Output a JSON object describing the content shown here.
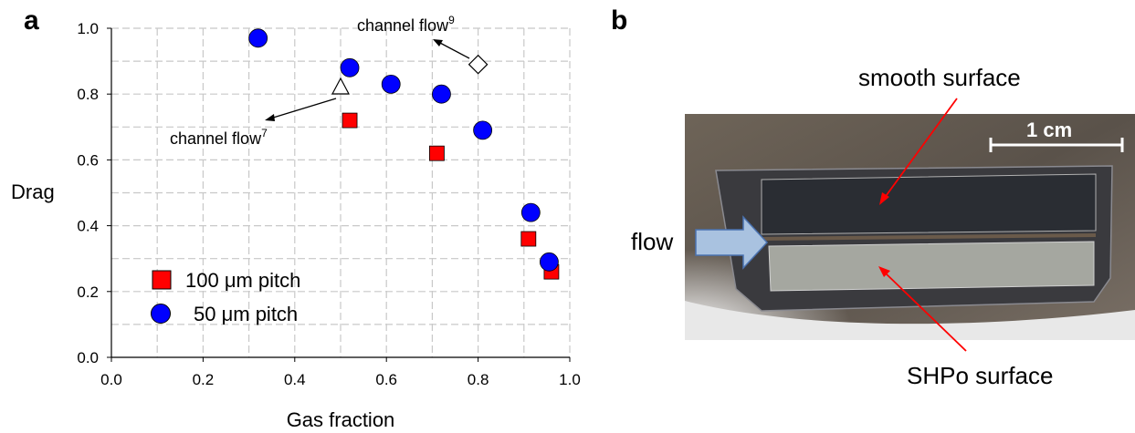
{
  "panel_a": {
    "letter": "a",
    "legend": {
      "series1": "100 μm pitch",
      "series2": "50 μm pitch"
    },
    "annotations": {
      "channel7_text": "channel flow",
      "channel7_ref": "7",
      "channel9_text": "channel flow",
      "channel9_ref": "9"
    }
  },
  "panel_b": {
    "letter": "b",
    "labels": {
      "smooth": "smooth surface",
      "shpo": "SHPo surface",
      "flow": "flow",
      "scale": "1 cm"
    }
  },
  "colors": {
    "series1": "#ff0000",
    "series2": "#0000ff",
    "grid": "#c8c8c8",
    "arrow": "#ff0000",
    "flow_arrow": "#a9c2e0"
  },
  "chart_data": {
    "type": "scatter",
    "xlabel": "Gas fraction",
    "ylabel": "Drag",
    "xlim": [
      0.0,
      1.0
    ],
    "ylim": [
      0.0,
      1.0
    ],
    "xticks": [
      "0.0",
      "0.2",
      "0.4",
      "0.6",
      "0.8",
      "1.0"
    ],
    "yticks": [
      "0.0",
      "0.2",
      "0.4",
      "0.6",
      "0.8",
      "1.0"
    ],
    "grid": true,
    "legend_position": "bottom-left",
    "series": [
      {
        "name": "100 μm pitch",
        "marker": "square",
        "points": [
          [
            0.52,
            0.72
          ],
          [
            0.71,
            0.62
          ],
          [
            0.91,
            0.36
          ],
          [
            0.96,
            0.26
          ]
        ]
      },
      {
        "name": "50 μm pitch",
        "marker": "circle",
        "points": [
          [
            0.32,
            0.97
          ],
          [
            0.52,
            0.88
          ],
          [
            0.61,
            0.83
          ],
          [
            0.72,
            0.8
          ],
          [
            0.81,
            0.69
          ],
          [
            0.915,
            0.44
          ],
          [
            0.955,
            0.29
          ]
        ]
      },
      {
        "marker": "triangle-open",
        "points": [
          [
            0.5,
            0.82
          ]
        ]
      },
      {
        "marker": "diamond-open",
        "points": [
          [
            0.8,
            0.89
          ]
        ]
      }
    ]
  }
}
